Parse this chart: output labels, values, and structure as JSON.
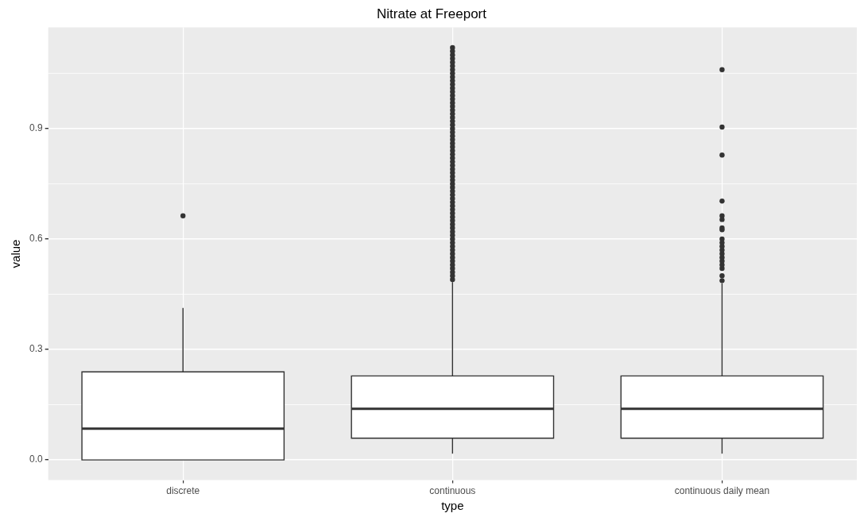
{
  "chart_data": {
    "type": "box",
    "title": "Nitrate at Freeport",
    "xlabel": "type",
    "ylabel": "value",
    "categories": [
      "discrete",
      "continuous",
      "continuous daily mean"
    ],
    "boxes": [
      {
        "low": 0,
        "q1": 0,
        "median": 0.085,
        "q3": 0.239,
        "high": 0.413,
        "outliers": [
          0.663
        ]
      },
      {
        "low": 0.017,
        "q1": 0.059,
        "median": 0.139,
        "q3": 0.228,
        "high": 0.483,
        "outliers": [
          0.49,
          0.5,
          0.51,
          0.52,
          0.53,
          0.54,
          0.55,
          0.56,
          0.57,
          0.58,
          0.59,
          0.6,
          0.61,
          0.62,
          0.63,
          0.64,
          0.65,
          0.66,
          0.67,
          0.68,
          0.69,
          0.7,
          0.71,
          0.72,
          0.73,
          0.74,
          0.75,
          0.76,
          0.77,
          0.78,
          0.79,
          0.8,
          0.81,
          0.82,
          0.83,
          0.84,
          0.85,
          0.86,
          0.87,
          0.88,
          0.89,
          0.9,
          0.91,
          0.92,
          0.93,
          0.94,
          0.95,
          0.96,
          0.97,
          0.98,
          0.99,
          1.0,
          1.01,
          1.02,
          1.03,
          1.04,
          1.05,
          1.06,
          1.07,
          1.08,
          1.09,
          1.1,
          1.11,
          1.12
        ]
      },
      {
        "low": 0.017,
        "q1": 0.059,
        "median": 0.139,
        "q3": 0.228,
        "high": 0.48,
        "outliers": [
          0.487,
          0.5,
          0.52,
          0.53,
          0.54,
          0.55,
          0.56,
          0.57,
          0.58,
          0.59,
          0.6,
          0.625,
          0.63,
          0.653,
          0.663,
          0.703,
          0.828,
          0.904,
          1.06
        ]
      }
    ],
    "ylim": [
      -0.055,
      1.175
    ],
    "yticks": [
      {
        "value": 0,
        "label": "0.0"
      },
      0.3,
      0.6,
      0.9
    ],
    "grid": true,
    "legend": false
  }
}
